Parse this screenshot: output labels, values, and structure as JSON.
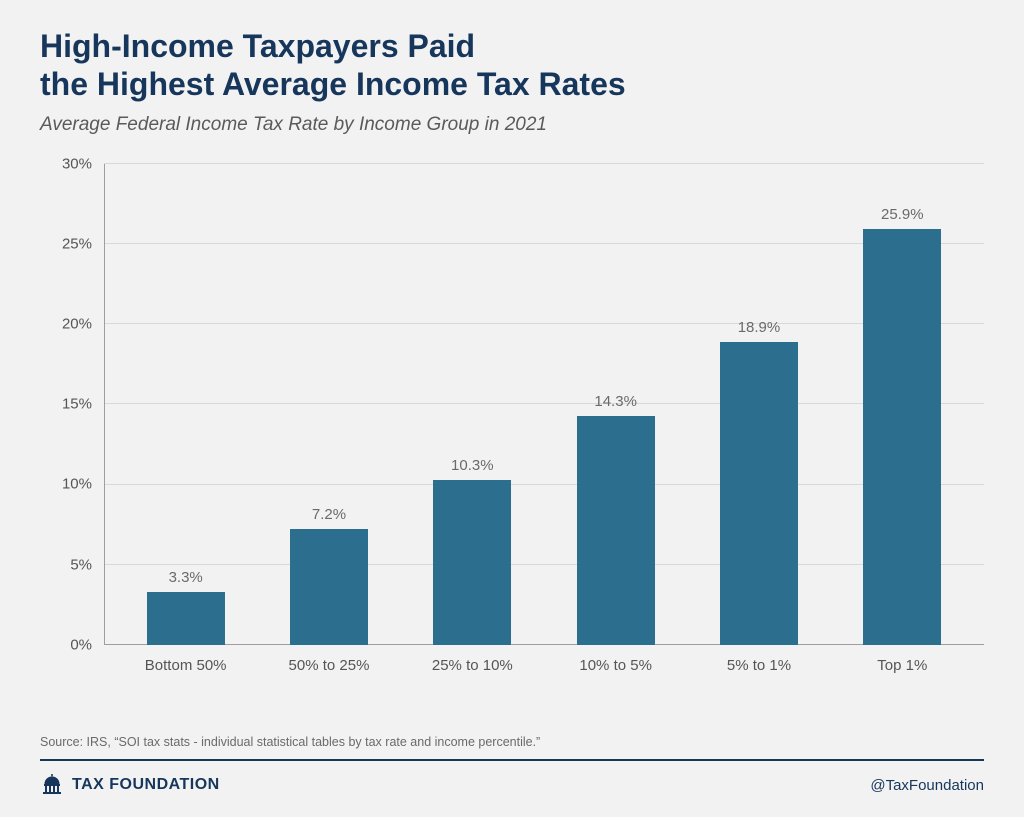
{
  "title_line1": "High-Income Taxpayers Paid",
  "title_line2": "the Highest Average Income Tax Rates",
  "subtitle": "Average Federal Income Tax Rate by Income Group in 2021",
  "chart": {
    "type": "bar",
    "categories": [
      "Bottom 50%",
      "50% to 25%",
      "25% to 10%",
      "10% to 5%",
      "5% to 1%",
      "Top 1%"
    ],
    "values": [
      3.3,
      7.2,
      10.3,
      14.3,
      18.9,
      25.9
    ],
    "value_labels": [
      "3.3%",
      "7.2%",
      "10.3%",
      "14.3%",
      "18.9%",
      "25.9%"
    ],
    "bar_color": "#2c6e8e",
    "ylim": [
      0,
      30
    ],
    "ytick_step": 5,
    "ytick_labels": [
      "0%",
      "5%",
      "10%",
      "15%",
      "20%",
      "25%",
      "30%"
    ],
    "grid_color": "#d8d8d8",
    "axis_color": "#9e9e9e",
    "value_label_color": "#6a6a6a",
    "tick_label_color": "#555555",
    "x_label_color": "#555555",
    "label_fontsize": 15
  },
  "colors": {
    "background": "#f2f2f2",
    "title": "#17365c",
    "subtitle": "#5a5a5a",
    "source": "#6a6a6a",
    "divider": "#17365c",
    "brand": "#17365c",
    "handle": "#17365c"
  },
  "typography": {
    "title_fontsize": 32,
    "subtitle_fontsize": 19
  },
  "source": "Source: IRS, “SOI tax stats - individual statistical tables by tax rate and income percentile.”",
  "brand": "TAX FOUNDATION",
  "handle": "@TaxFoundation"
}
